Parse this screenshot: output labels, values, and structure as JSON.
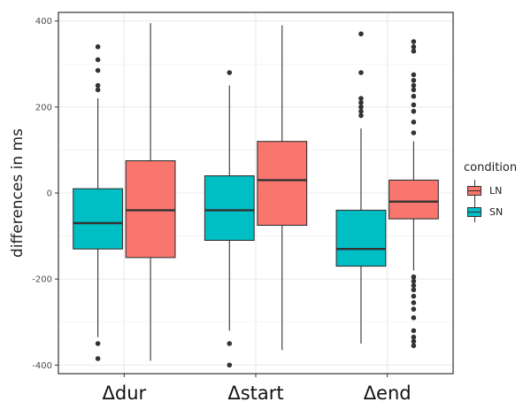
{
  "chart_data": {
    "type": "box",
    "ylabel": "differences in ms",
    "xlabel": "",
    "ylim": [
      -420,
      420
    ],
    "yticks": [
      -400,
      -200,
      0,
      200,
      400
    ],
    "categories": [
      "Δdur",
      "Δstart",
      "Δend"
    ],
    "grid": true,
    "legend": {
      "title": "condition",
      "placement": "right",
      "entries": [
        {
          "name": "LN",
          "color": "#F8766D"
        },
        {
          "name": "SN",
          "color": "#00BFC4"
        }
      ]
    },
    "boxes": [
      {
        "category": "Δdur",
        "condition": "SN",
        "q1": -130,
        "median": -70,
        "q3": 10,
        "whisker_low": -335,
        "whisker_high": 220,
        "outliers": [
          240,
          250,
          285,
          310,
          340,
          -350,
          -385
        ]
      },
      {
        "category": "Δdur",
        "condition": "LN",
        "q1": -150,
        "median": -40,
        "q3": 75,
        "whisker_low": -390,
        "whisker_high": 395,
        "outliers": []
      },
      {
        "category": "Δstart",
        "condition": "SN",
        "q1": -110,
        "median": -40,
        "q3": 40,
        "whisker_low": -320,
        "whisker_high": 250,
        "outliers": [
          280,
          -350,
          -400
        ]
      },
      {
        "category": "Δstart",
        "condition": "LN",
        "q1": -75,
        "median": 30,
        "q3": 120,
        "whisker_low": -365,
        "whisker_high": 390,
        "outliers": []
      },
      {
        "category": "Δend",
        "condition": "SN",
        "q1": -170,
        "median": -130,
        "q3": -40,
        "whisker_low": -350,
        "whisker_high": 150,
        "outliers": [
          180,
          190,
          200,
          210,
          220,
          280,
          370
        ]
      },
      {
        "category": "Δend",
        "condition": "LN",
        "q1": -60,
        "median": -20,
        "q3": 30,
        "whisker_low": -180,
        "whisker_high": 120,
        "outliers": [
          140,
          165,
          190,
          205,
          225,
          240,
          250,
          262,
          275,
          330,
          340,
          352,
          -195,
          -205,
          -215,
          -225,
          -240,
          -255,
          -270,
          -290,
          -320,
          -335,
          -345,
          -355
        ]
      }
    ]
  }
}
